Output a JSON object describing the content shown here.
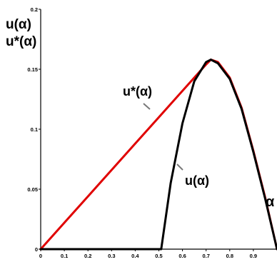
{
  "chart_data": {
    "type": "line",
    "ylabel_lines": [
      "u(α)",
      "u*(α)"
    ],
    "xlabel": "α",
    "xlim": [
      0,
      1
    ],
    "ylim": [
      0,
      0.2
    ],
    "x_ticks": [
      "0",
      "0.1",
      "0.2",
      "0.3",
      "0.4",
      "0.5",
      "0.6",
      "0.7",
      "0.8",
      "0.9"
    ],
    "y_ticks": [
      "0",
      "0.05",
      "0.1",
      "0.15",
      "0.2"
    ],
    "annotations": [
      {
        "text": "u*(α)",
        "series": "u*(α)"
      },
      {
        "text": "u(α)",
        "series": "u(α)"
      }
    ],
    "series": [
      {
        "name": "u*(α)",
        "color": "#e00000",
        "x": [
          0,
          0.1,
          0.2,
          0.3,
          0.4,
          0.5,
          0.6,
          0.65,
          0.7,
          0.72,
          0.75,
          0.8,
          0.85,
          0.9,
          0.95,
          1.0
        ],
        "y": [
          0,
          0.022,
          0.044,
          0.066,
          0.088,
          0.11,
          0.132,
          0.143,
          0.154,
          0.158,
          0.156,
          0.143,
          0.118,
          0.082,
          0.043,
          0.0
        ]
      },
      {
        "name": "u(α)",
        "color": "#000000",
        "x": [
          0,
          0.1,
          0.2,
          0.3,
          0.4,
          0.5,
          0.51,
          0.55,
          0.6,
          0.65,
          0.7,
          0.72,
          0.75,
          0.8,
          0.85,
          0.9,
          0.95,
          1.0
        ],
        "y": [
          0,
          0,
          0,
          0,
          0,
          0,
          0,
          0.055,
          0.105,
          0.14,
          0.156,
          0.158,
          0.155,
          0.142,
          0.117,
          0.081,
          0.042,
          0.0
        ]
      }
    ]
  }
}
